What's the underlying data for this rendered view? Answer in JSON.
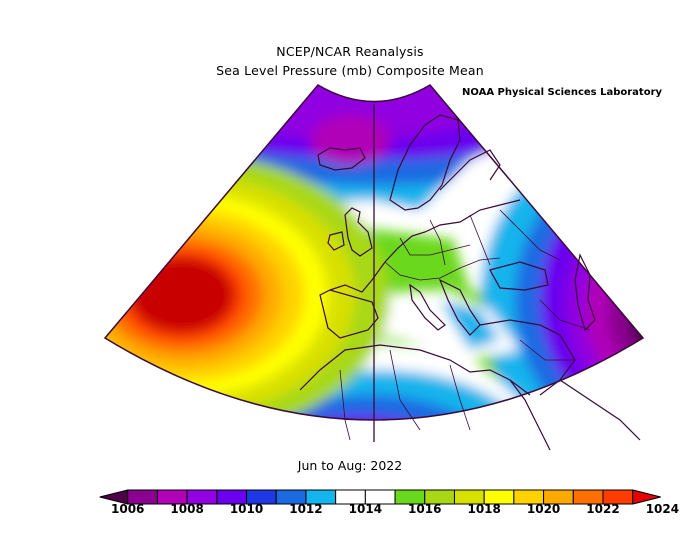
{
  "title": {
    "line1": "NCEP/NCAR Reanalysis",
    "line2": "Sea Level Pressure (mb) Composite Mean"
  },
  "credit": "NOAA Physical Sciences Laboratory",
  "period": "Jun to Aug: 2022",
  "colorbar": {
    "colors": [
      "#4e0049",
      "#8a0090",
      "#b000b8",
      "#9000e0",
      "#6a00ee",
      "#1f38e6",
      "#1a6ae2",
      "#14b4ec",
      "#ffffff",
      "#ffffff",
      "#6ad81c",
      "#a8d815",
      "#d8e000",
      "#ffff00",
      "#ffd200",
      "#ffaa00",
      "#ff7000",
      "#ff3c00",
      "#e60000"
    ],
    "tick_values": [
      "1006",
      "1008",
      "1010",
      "1012",
      "1014",
      "1016",
      "1018",
      "1020",
      "1022",
      "1024"
    ]
  },
  "map_regions": [
    {
      "name": "high-pressure-core",
      "color": "#c80000"
    },
    {
      "name": "low-pressure-east",
      "color": "#4e0049"
    }
  ]
}
